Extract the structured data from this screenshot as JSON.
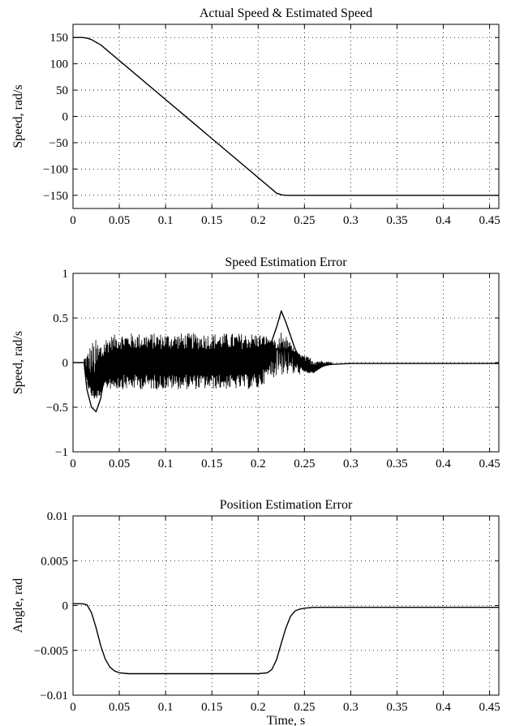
{
  "chart_data": [
    {
      "type": "line",
      "title": "Actual Speed & Estimated Speed",
      "xlabel": "",
      "ylabel": "Speed, rad/s",
      "xlim": [
        0,
        0.46
      ],
      "ylim": [
        -175,
        175
      ],
      "xticks": [
        0,
        0.05,
        0.1,
        0.15,
        0.2,
        0.25,
        0.3,
        0.35,
        0.4,
        0.45
      ],
      "xtick_labels": [
        "0",
        "0.05",
        "0.1",
        "0.15",
        "0.2",
        "0.25",
        "0.3",
        "0.35",
        "0.4",
        "0.45"
      ],
      "yticks": [
        150,
        100,
        50,
        0,
        -50,
        -100,
        -150
      ],
      "ytick_labels": [
        "150",
        "100",
        "50",
        "0",
        "−50",
        "−100",
        "−150"
      ],
      "grid": true,
      "series": [
        {
          "x": [
            0,
            0.01,
            0.015,
            0.02,
            0.025,
            0.03,
            0.22,
            0.225,
            0.23,
            0.24,
            0.3,
            0.35,
            0.4,
            0.46
          ],
          "y": [
            150,
            150,
            149,
            146,
            141,
            136,
            -146,
            -149,
            -150,
            -150,
            -150,
            -150,
            -150,
            -150
          ]
        }
      ]
    },
    {
      "type": "line",
      "title": "Speed Estimation Error",
      "xlabel": "",
      "ylabel": "Speed, rad/s",
      "xlim": [
        0,
        0.46
      ],
      "ylim": [
        -1,
        1
      ],
      "xticks": [
        0,
        0.05,
        0.1,
        0.15,
        0.2,
        0.25,
        0.3,
        0.35,
        0.4,
        0.45
      ],
      "xtick_labels": [
        "0",
        "0.05",
        "0.1",
        "0.15",
        "0.2",
        "0.25",
        "0.3",
        "0.35",
        "0.4",
        "0.45"
      ],
      "yticks": [
        1,
        0.5,
        0,
        -0.5,
        -1
      ],
      "ytick_labels": [
        "1",
        "0.5",
        "0",
        "−0.5",
        "−1"
      ],
      "grid": true,
      "series": [
        {
          "x": [
            0,
            0.012,
            0.015,
            0.02,
            0.025,
            0.03,
            0.035,
            0.04,
            0.05,
            0.06,
            0.08,
            0.1,
            0.12,
            0.14,
            0.16,
            0.18,
            0.2,
            0.21,
            0.22,
            0.225,
            0.23,
            0.24,
            0.25,
            0.26,
            0.27,
            0.28,
            0.3,
            0.35,
            0.4,
            0.46
          ],
          "y": [
            0,
            0,
            -0.3,
            -0.5,
            -0.55,
            -0.4,
            -0.1,
            0,
            0,
            0,
            0,
            0,
            0,
            0,
            0,
            0,
            0.02,
            0.1,
            0.4,
            0.58,
            0.45,
            0.15,
            -0.05,
            -0.1,
            -0.03,
            -0.02,
            -0.01,
            -0.01,
            -0.01,
            -0.01
          ],
          "band": {
            "x": [
              0.012,
              0.02,
              0.03,
              0.04,
              0.05,
              0.1,
              0.15,
              0.2,
              0.21,
              0.22,
              0.23,
              0.24,
              0.25,
              0.26,
              0.27,
              0.28
            ],
            "upper": [
              0.05,
              0.25,
              0.28,
              0.3,
              0.33,
              0.33,
              0.33,
              0.33,
              0.3,
              0.15,
              0.15,
              0.12,
              0.08,
              0.05,
              0.02,
              0.01
            ],
            "lower": [
              -0.1,
              -0.3,
              -0.3,
              -0.3,
              -0.3,
              -0.3,
              -0.3,
              -0.3,
              -0.2,
              -0.15,
              -0.15,
              -0.15,
              -0.12,
              -0.12,
              -0.05,
              -0.02
            ]
          }
        }
      ]
    },
    {
      "type": "line",
      "title": "Position Estimation Error",
      "xlabel": "Time, s",
      "ylabel": "Angle, rad",
      "xlim": [
        0,
        0.46
      ],
      "ylim": [
        -0.01,
        0.01
      ],
      "xticks": [
        0,
        0.05,
        0.1,
        0.15,
        0.2,
        0.25,
        0.3,
        0.35,
        0.4,
        0.45
      ],
      "xtick_labels": [
        "0",
        "0.05",
        "0.1",
        "0.15",
        "0.2",
        "0.25",
        "0.3",
        "0.35",
        "0.4",
        "0.45"
      ],
      "yticks": [
        0.01,
        0.005,
        0,
        -0.005,
        -0.01
      ],
      "ytick_labels": [
        "0.01",
        "0.005",
        "0",
        "−0.005",
        "−0.01"
      ],
      "grid": true,
      "series": [
        {
          "x": [
            0,
            0.01,
            0.015,
            0.02,
            0.025,
            0.03,
            0.035,
            0.04,
            0.045,
            0.05,
            0.06,
            0.08,
            0.1,
            0.15,
            0.2,
            0.21,
            0.215,
            0.22,
            0.225,
            0.23,
            0.235,
            0.24,
            0.245,
            0.25,
            0.26,
            0.3,
            0.35,
            0.4,
            0.46
          ],
          "y": [
            0.0002,
            0.0002,
            0.0001,
            -0.0008,
            -0.0025,
            -0.0045,
            -0.006,
            -0.0069,
            -0.0073,
            -0.0075,
            -0.0076,
            -0.0076,
            -0.0076,
            -0.0076,
            -0.0076,
            -0.0075,
            -0.0071,
            -0.006,
            -0.0042,
            -0.0025,
            -0.0012,
            -0.0006,
            -0.0004,
            -0.0003,
            -0.0002,
            -0.0002,
            -0.0002,
            -0.0002,
            -0.0002
          ]
        }
      ]
    }
  ]
}
